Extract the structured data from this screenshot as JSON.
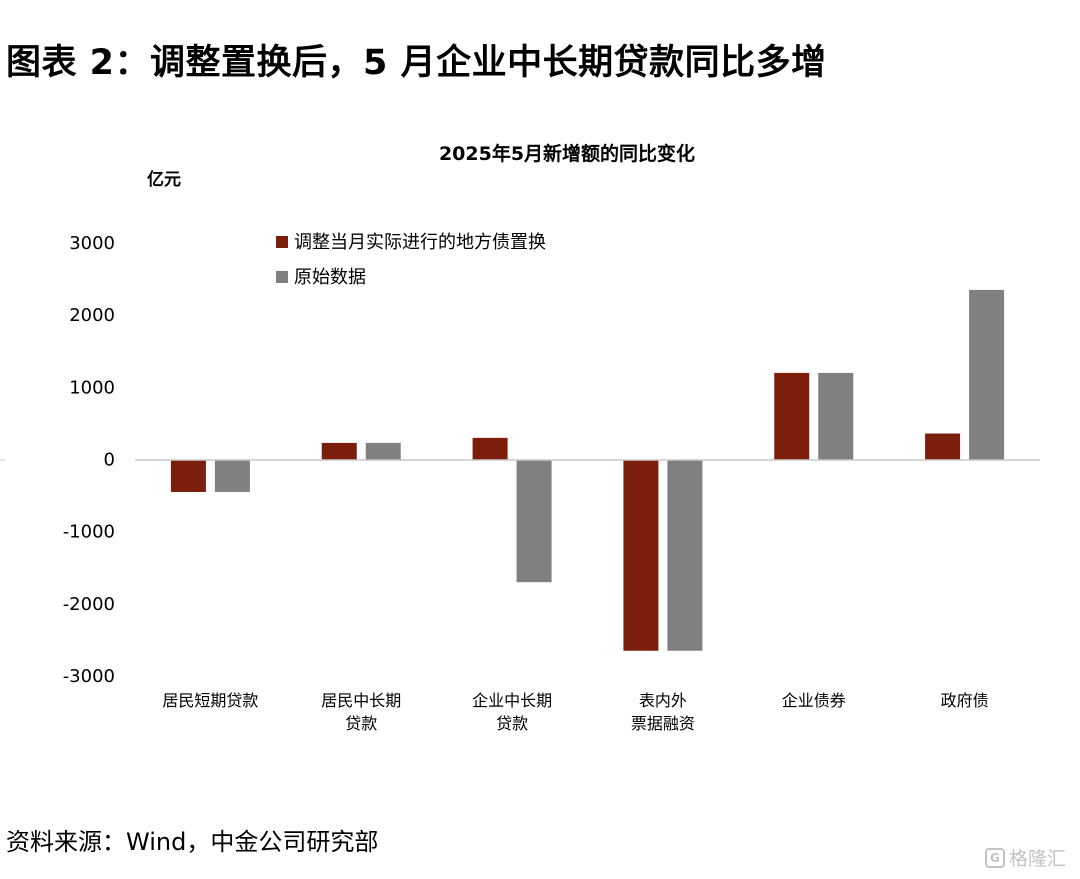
{
  "figure_title": "图表 2：调整置换后，5 月企业中长期贷款同比多增",
  "source_note": "资料来源：Wind，中金公司研究部",
  "watermark": {
    "text": "格隆汇",
    "logo_glyph": "G"
  },
  "colors": {
    "adjusted": "#7b1f0c",
    "original": "#808080",
    "axis": "#c8c8c8"
  },
  "chart_data": {
    "type": "bar",
    "title": "2025年5月新增额的同比变化",
    "ylabel": "亿元",
    "xlabel": "",
    "ylim": [
      -3000,
      3000
    ],
    "yticks": [
      3000,
      2000,
      1000,
      0,
      -1000,
      -2000,
      -3000
    ],
    "grid": false,
    "legend_position": "top-center",
    "categories": [
      [
        "居民短期贷款"
      ],
      [
        "居民中长期",
        "贷款"
      ],
      [
        "企业中长期",
        "贷款"
      ],
      [
        "表内外",
        "票据融资"
      ],
      [
        "企业债券"
      ],
      [
        "政府债"
      ]
    ],
    "series": [
      {
        "name": "调整当月实际进行的地方债置换",
        "color": "#7b1f0c",
        "values": [
          -450,
          230,
          300,
          -2650,
          1200,
          360
        ]
      },
      {
        "name": "原始数据",
        "color": "#808080",
        "values": [
          -450,
          230,
          -1700,
          -2650,
          1200,
          2350
        ]
      }
    ]
  }
}
